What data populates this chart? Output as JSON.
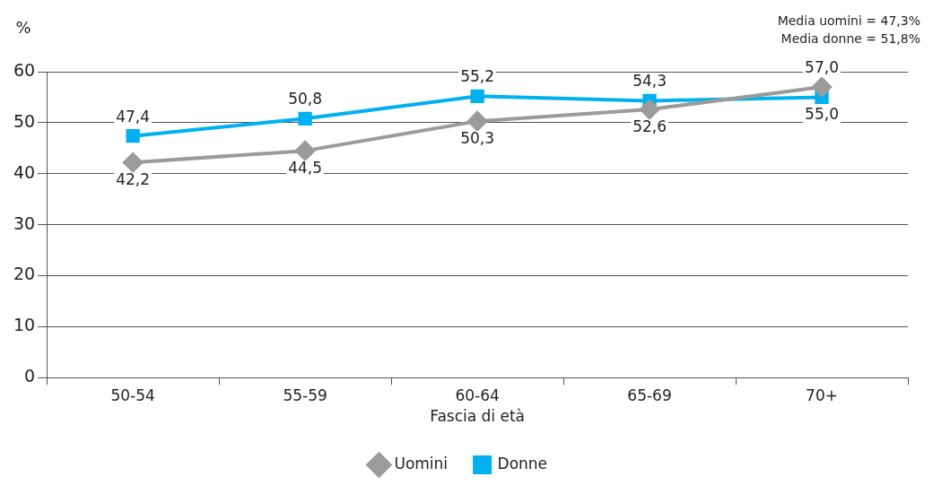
{
  "chart_data": {
    "type": "line",
    "ylabel": "%",
    "xlabel": "Fascia di età",
    "categories": [
      "50-54",
      "55-59",
      "60-64",
      "65-69",
      "70+"
    ],
    "series": [
      {
        "name": "Uomini",
        "color": "#9b9b9b",
        "marker": "diamond",
        "values": [
          42.2,
          44.5,
          50.3,
          52.6,
          57.0
        ],
        "value_labels": [
          "42,2",
          "44,5",
          "50,3",
          "52,6",
          "57,0"
        ]
      },
      {
        "name": "Donne",
        "color": "#00b0f0",
        "marker": "square",
        "values": [
          47.4,
          50.8,
          55.2,
          54.3,
          55.0
        ],
        "value_labels": [
          "47,4",
          "50,8",
          "55,2",
          "54,3",
          "55,0"
        ]
      }
    ],
    "ylim": [
      0,
      60
    ],
    "yticks": [
      0,
      10,
      20,
      30,
      40,
      50,
      60
    ],
    "grid": "y",
    "legend": "bottom",
    "annotations": [
      "Media uomini = 47,3%",
      "Media donne = 51,8%"
    ]
  }
}
